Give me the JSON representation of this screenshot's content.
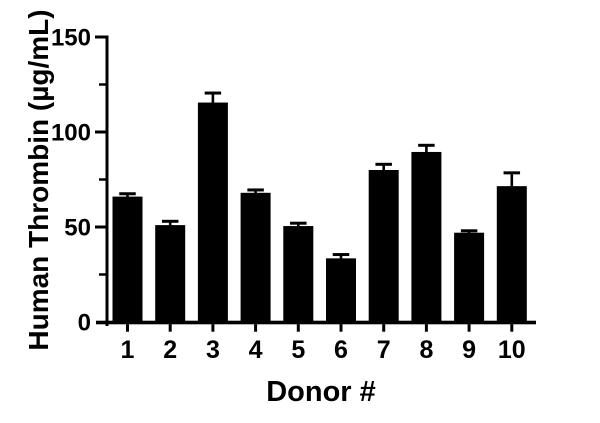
{
  "figure": {
    "background": "#ffffff",
    "foreground": "#000000"
  },
  "chart_data": {
    "type": "bar",
    "title": "",
    "xlabel": "Donor #",
    "ylabel": "Human Thrombin (µg/mL)",
    "categories": [
      "1",
      "2",
      "3",
      "4",
      "5",
      "6",
      "7",
      "8",
      "9",
      "10"
    ],
    "series": [
      {
        "name": "Human Thrombin",
        "values": [
          66,
          51,
          115.5,
          68,
          50.5,
          33.5,
          80,
          89.5,
          47,
          71.5
        ],
        "errors_up": [
          1.5,
          2,
          5,
          1.5,
          1.5,
          2,
          3,
          3.5,
          1,
          7
        ],
        "color": "#000000"
      }
    ],
    "ylim": [
      0,
      150
    ],
    "yticks": [
      0,
      50,
      100,
      150
    ],
    "ytick_labels": [
      "0",
      "50",
      "100",
      "150"
    ],
    "yminorticks": [
      25,
      75,
      125
    ],
    "grid": "off",
    "legend": "none",
    "bar_color": "#000000",
    "error_bar_color": "#000000",
    "axis_color": "#000000"
  }
}
